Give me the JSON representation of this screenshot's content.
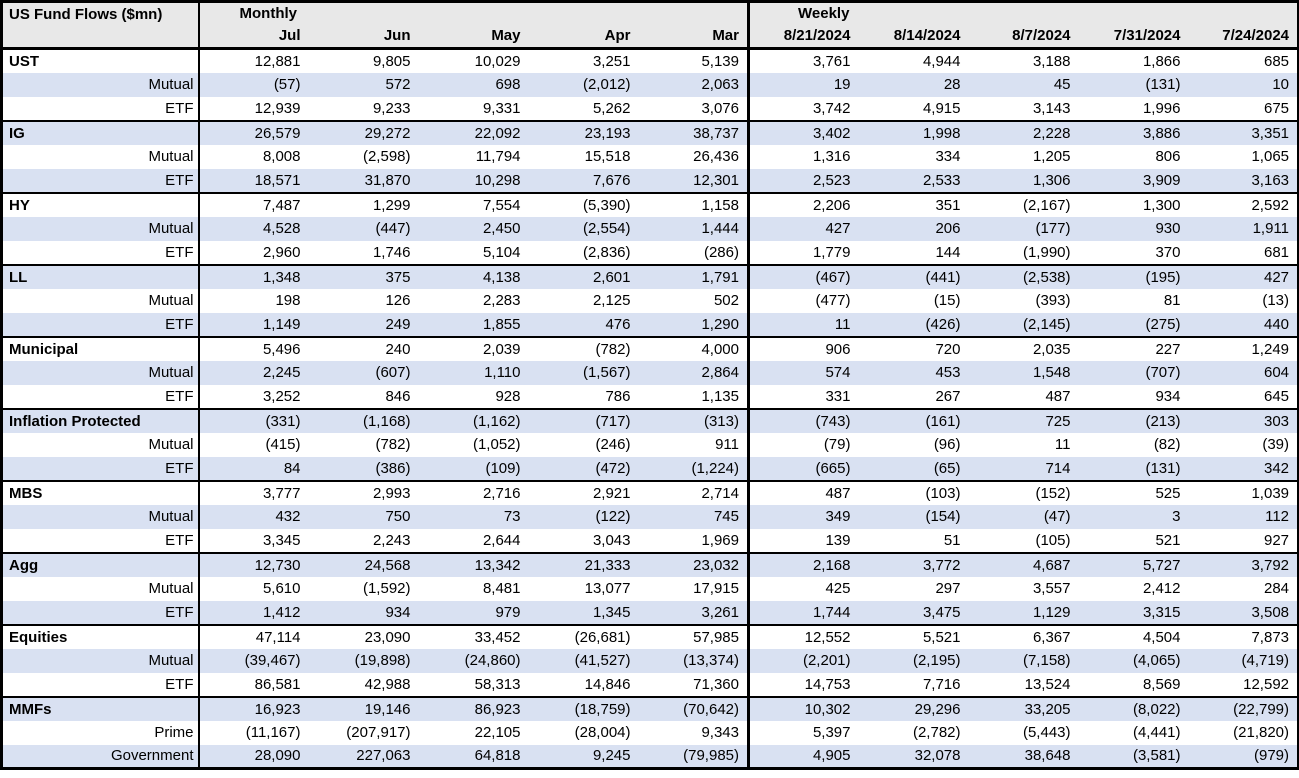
{
  "colors": {
    "header_bg": "#e8e8e8",
    "alt_row_bg": "#d9e1f2",
    "border": "#000000",
    "text": "#000000"
  },
  "table": {
    "title": "US Fund Flows ($mn)",
    "sections": [
      {
        "label": "Monthly",
        "columns": [
          "Jul",
          "Jun",
          "May",
          "Apr",
          "Mar"
        ]
      },
      {
        "label": "Weekly",
        "columns": [
          "8/21/2024",
          "8/14/2024",
          "8/7/2024",
          "7/31/2024",
          "7/24/2024"
        ]
      }
    ],
    "groups": [
      {
        "name": "UST",
        "rows": [
          {
            "label": "UST",
            "values": [
              "12,881",
              "9,805",
              "10,029",
              "3,251",
              "5,139",
              "3,761",
              "4,944",
              "3,188",
              "1,866",
              "685"
            ]
          },
          {
            "label": "Mutual",
            "values": [
              "(57)",
              "572",
              "698",
              "(2,012)",
              "2,063",
              "19",
              "28",
              "45",
              "(131)",
              "10"
            ]
          },
          {
            "label": "ETF",
            "values": [
              "12,939",
              "9,233",
              "9,331",
              "5,262",
              "3,076",
              "3,742",
              "4,915",
              "3,143",
              "1,996",
              "675"
            ]
          }
        ]
      },
      {
        "name": "IG",
        "rows": [
          {
            "label": "IG",
            "values": [
              "26,579",
              "29,272",
              "22,092",
              "23,193",
              "38,737",
              "3,402",
              "1,998",
              "2,228",
              "3,886",
              "3,351"
            ]
          },
          {
            "label": "Mutual",
            "values": [
              "8,008",
              "(2,598)",
              "11,794",
              "15,518",
              "26,436",
              "1,316",
              "334",
              "1,205",
              "806",
              "1,065"
            ]
          },
          {
            "label": "ETF",
            "values": [
              "18,571",
              "31,870",
              "10,298",
              "7,676",
              "12,301",
              "2,523",
              "2,533",
              "1,306",
              "3,909",
              "3,163"
            ]
          }
        ]
      },
      {
        "name": "HY",
        "rows": [
          {
            "label": "HY",
            "values": [
              "7,487",
              "1,299",
              "7,554",
              "(5,390)",
              "1,158",
              "2,206",
              "351",
              "(2,167)",
              "1,300",
              "2,592"
            ]
          },
          {
            "label": "Mutual",
            "values": [
              "4,528",
              "(447)",
              "2,450",
              "(2,554)",
              "1,444",
              "427",
              "206",
              "(177)",
              "930",
              "1,911"
            ]
          },
          {
            "label": "ETF",
            "values": [
              "2,960",
              "1,746",
              "5,104",
              "(2,836)",
              "(286)",
              "1,779",
              "144",
              "(1,990)",
              "370",
              "681"
            ]
          }
        ]
      },
      {
        "name": "LL",
        "rows": [
          {
            "label": "LL",
            "values": [
              "1,348",
              "375",
              "4,138",
              "2,601",
              "1,791",
              "(467)",
              "(441)",
              "(2,538)",
              "(195)",
              "427"
            ]
          },
          {
            "label": "Mutual",
            "values": [
              "198",
              "126",
              "2,283",
              "2,125",
              "502",
              "(477)",
              "(15)",
              "(393)",
              "81",
              "(13)"
            ]
          },
          {
            "label": "ETF",
            "values": [
              "1,149",
              "249",
              "1,855",
              "476",
              "1,290",
              "11",
              "(426)",
              "(2,145)",
              "(275)",
              "440"
            ]
          }
        ]
      },
      {
        "name": "Municipal",
        "rows": [
          {
            "label": "Municipal",
            "values": [
              "5,496",
              "240",
              "2,039",
              "(782)",
              "4,000",
              "906",
              "720",
              "2,035",
              "227",
              "1,249"
            ]
          },
          {
            "label": "Mutual",
            "values": [
              "2,245",
              "(607)",
              "1,110",
              "(1,567)",
              "2,864",
              "574",
              "453",
              "1,548",
              "(707)",
              "604"
            ]
          },
          {
            "label": "ETF",
            "values": [
              "3,252",
              "846",
              "928",
              "786",
              "1,135",
              "331",
              "267",
              "487",
              "934",
              "645"
            ]
          }
        ]
      },
      {
        "name": "Inflation Protected",
        "rows": [
          {
            "label": "Inflation Protected",
            "values": [
              "(331)",
              "(1,168)",
              "(1,162)",
              "(717)",
              "(313)",
              "(743)",
              "(161)",
              "725",
              "(213)",
              "303"
            ]
          },
          {
            "label": "Mutual",
            "values": [
              "(415)",
              "(782)",
              "(1,052)",
              "(246)",
              "911",
              "(79)",
              "(96)",
              "11",
              "(82)",
              "(39)"
            ]
          },
          {
            "label": "ETF",
            "values": [
              "84",
              "(386)",
              "(109)",
              "(472)",
              "(1,224)",
              "(665)",
              "(65)",
              "714",
              "(131)",
              "342"
            ]
          }
        ]
      },
      {
        "name": "MBS",
        "rows": [
          {
            "label": "MBS",
            "values": [
              "3,777",
              "2,993",
              "2,716",
              "2,921",
              "2,714",
              "487",
              "(103)",
              "(152)",
              "525",
              "1,039"
            ]
          },
          {
            "label": "Mutual",
            "values": [
              "432",
              "750",
              "73",
              "(122)",
              "745",
              "349",
              "(154)",
              "(47)",
              "3",
              "112"
            ]
          },
          {
            "label": "ETF",
            "values": [
              "3,345",
              "2,243",
              "2,644",
              "3,043",
              "1,969",
              "139",
              "51",
              "(105)",
              "521",
              "927"
            ]
          }
        ]
      },
      {
        "name": "Agg",
        "rows": [
          {
            "label": "Agg",
            "values": [
              "12,730",
              "24,568",
              "13,342",
              "21,333",
              "23,032",
              "2,168",
              "3,772",
              "4,687",
              "5,727",
              "3,792"
            ]
          },
          {
            "label": "Mutual",
            "values": [
              "5,610",
              "(1,592)",
              "8,481",
              "13,077",
              "17,915",
              "425",
              "297",
              "3,557",
              "2,412",
              "284"
            ]
          },
          {
            "label": "ETF",
            "values": [
              "1,412",
              "934",
              "979",
              "1,345",
              "3,261",
              "1,744",
              "3,475",
              "1,129",
              "3,315",
              "3,508"
            ]
          }
        ]
      },
      {
        "name": "Equities",
        "rows": [
          {
            "label": "Equities",
            "values": [
              "47,114",
              "23,090",
              "33,452",
              "(26,681)",
              "57,985",
              "12,552",
              "5,521",
              "6,367",
              "4,504",
              "7,873"
            ]
          },
          {
            "label": "Mutual",
            "values": [
              "(39,467)",
              "(19,898)",
              "(24,860)",
              "(41,527)",
              "(13,374)",
              "(2,201)",
              "(2,195)",
              "(7,158)",
              "(4,065)",
              "(4,719)"
            ]
          },
          {
            "label": "ETF",
            "values": [
              "86,581",
              "42,988",
              "58,313",
              "14,846",
              "71,360",
              "14,753",
              "7,716",
              "13,524",
              "8,569",
              "12,592"
            ]
          }
        ]
      },
      {
        "name": "MMFs",
        "rows": [
          {
            "label": "MMFs",
            "values": [
              "16,923",
              "19,146",
              "86,923",
              "(18,759)",
              "(70,642)",
              "10,302",
              "29,296",
              "33,205",
              "(8,022)",
              "(22,799)"
            ]
          },
          {
            "label": "Prime",
            "values": [
              "(11,167)",
              "(207,917)",
              "22,105",
              "(28,004)",
              "9,343",
              "5,397",
              "(2,782)",
              "(5,443)",
              "(4,441)",
              "(21,820)"
            ]
          },
          {
            "label": "Government",
            "values": [
              "28,090",
              "227,063",
              "64,818",
              "9,245",
              "(79,985)",
              "4,905",
              "32,078",
              "38,648",
              "(3,581)",
              "(979)"
            ]
          }
        ]
      }
    ]
  }
}
